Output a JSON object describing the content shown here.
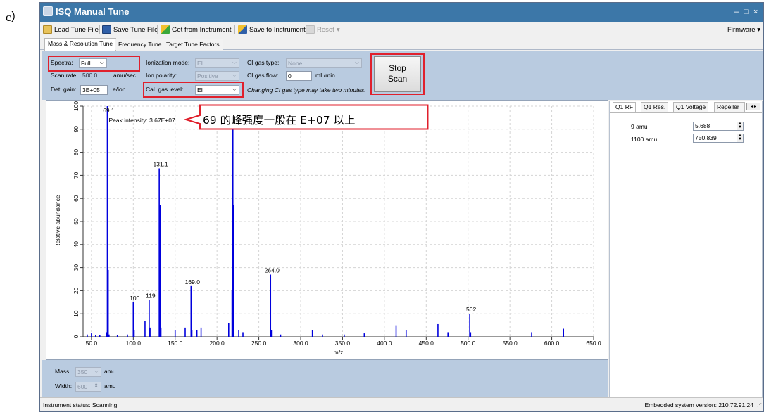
{
  "figure_label": "c）",
  "window": {
    "title": "ISQ Manual Tune",
    "controls": [
      "–",
      "□",
      "×"
    ]
  },
  "toolbar": {
    "load_tune_file": "Load Tune File",
    "save_tune_file": "Save Tune File",
    "get_from_instrument": "Get from Instrument",
    "save_to_instrument": "Save to Instrument",
    "reset": "Reset",
    "firmware": "Firmware ▾",
    "icons": [
      "folder-open-icon",
      "floppy-disk-icon",
      "get-from-instrument-icon",
      "save-to-instrument-icon",
      "reset-icon"
    ]
  },
  "tabs": [
    "Mass & Resolution Tune",
    "Frequency Tune",
    "Target Tune Factors"
  ],
  "controls": {
    "spectra_label": "Spectra:",
    "spectra_value": "Full",
    "scan_rate_label": "Scan rate:",
    "scan_rate_value": "500.0",
    "scan_rate_unit": "amu/sec",
    "det_gain_label": "Det. gain:",
    "det_gain_value": "3E+05",
    "det_gain_unit": "e/ion",
    "ionization_mode_label": "Ionization mode:",
    "ionization_mode_value": "EI",
    "ion_polarity_label": "Ion polarity:",
    "ion_polarity_value": "Positive",
    "cal_gas_level_label": "Cal. gas level:",
    "cal_gas_level_value": "EI",
    "ci_gas_type_label": "CI gas type:",
    "ci_gas_type_value": "None",
    "ci_gas_flow_label": "CI gas flow:",
    "ci_gas_flow_value": "0",
    "ci_gas_flow_unit": "mL/min",
    "ci_note": "Changing CI gas type may take two minutes.",
    "stop_scan_line1": "Stop",
    "stop_scan_line2": "Scan",
    "highlight_color": "#e0202c"
  },
  "annotation": {
    "text": "69 的峰强度一般在 E+07 以上"
  },
  "chart_data": {
    "type": "bar",
    "xlabel": "m/z",
    "ylabel": "Relative abundance",
    "xlim": [
      40,
      650
    ],
    "ylim": [
      0,
      100
    ],
    "x_ticks": [
      "50.0",
      "100.0",
      "150.0",
      "200.0",
      "250.0",
      "300.0",
      "350.0",
      "400.0",
      "450.0",
      "500.0",
      "550.0",
      "600.0",
      "650.0"
    ],
    "y_ticks": [
      "0",
      "10",
      "20",
      "30",
      "40",
      "50",
      "60",
      "70",
      "80",
      "90",
      "100"
    ],
    "peak_intensity_text": "Peak intensity: 3.67E+07",
    "color": "#0000dd",
    "labeled_peaks": [
      {
        "mz": 69,
        "value": 100,
        "label": "69.1"
      },
      {
        "mz": 100,
        "value": 15,
        "label": "100"
      },
      {
        "mz": 119,
        "value": 16,
        "label": "119"
      },
      {
        "mz": 131,
        "value": 73,
        "label": "131.1"
      },
      {
        "mz": 169,
        "value": 22,
        "label": "169.0"
      },
      {
        "mz": 219,
        "value": 95,
        "label": "219.0"
      },
      {
        "mz": 264,
        "value": 27,
        "label": "264.0"
      },
      {
        "mz": 502,
        "value": 10,
        "label": "502"
      }
    ],
    "peaks": [
      {
        "mz": 45,
        "value": 1
      },
      {
        "mz": 50,
        "value": 1.5
      },
      {
        "mz": 55,
        "value": 0.8
      },
      {
        "mz": 60,
        "value": 0.7
      },
      {
        "mz": 68,
        "value": 2
      },
      {
        "mz": 69,
        "value": 100
      },
      {
        "mz": 70,
        "value": 29
      },
      {
        "mz": 71,
        "value": 1
      },
      {
        "mz": 81,
        "value": 0.8
      },
      {
        "mz": 93,
        "value": 1
      },
      {
        "mz": 100,
        "value": 15
      },
      {
        "mz": 101,
        "value": 3
      },
      {
        "mz": 114,
        "value": 7
      },
      {
        "mz": 119,
        "value": 16
      },
      {
        "mz": 120,
        "value": 4
      },
      {
        "mz": 131,
        "value": 73
      },
      {
        "mz": 132,
        "value": 57
      },
      {
        "mz": 133,
        "value": 4
      },
      {
        "mz": 150,
        "value": 3
      },
      {
        "mz": 162,
        "value": 4
      },
      {
        "mz": 169,
        "value": 22
      },
      {
        "mz": 170,
        "value": 3
      },
      {
        "mz": 176,
        "value": 3
      },
      {
        "mz": 181,
        "value": 4
      },
      {
        "mz": 214,
        "value": 6
      },
      {
        "mz": 218,
        "value": 20
      },
      {
        "mz": 219,
        "value": 95
      },
      {
        "mz": 220,
        "value": 57
      },
      {
        "mz": 226,
        "value": 3
      },
      {
        "mz": 231,
        "value": 2
      },
      {
        "mz": 264,
        "value": 27
      },
      {
        "mz": 265,
        "value": 3
      },
      {
        "mz": 276,
        "value": 1
      },
      {
        "mz": 314,
        "value": 3
      },
      {
        "mz": 326,
        "value": 1
      },
      {
        "mz": 352,
        "value": 1
      },
      {
        "mz": 376,
        "value": 1.5
      },
      {
        "mz": 414,
        "value": 5
      },
      {
        "mz": 426,
        "value": 3
      },
      {
        "mz": 464,
        "value": 5.5
      },
      {
        "mz": 476,
        "value": 2
      },
      {
        "mz": 502,
        "value": 10
      },
      {
        "mz": 503,
        "value": 2
      },
      {
        "mz": 576,
        "value": 2
      },
      {
        "mz": 614,
        "value": 3.5
      }
    ]
  },
  "bottom": {
    "mass_label": "Mass:",
    "mass_value": "350",
    "mass_unit": "amu",
    "width_label": "Width:",
    "width_value": "600",
    "width_unit": "amu"
  },
  "right_panel": {
    "tabs": [
      "Q1 RF",
      "Q1 Res.",
      "Q1 Voltage",
      "Repeller"
    ],
    "rows": [
      {
        "label": "9 amu",
        "value": "5.688"
      },
      {
        "label": "1100 amu",
        "value": "750.839"
      }
    ]
  },
  "status": {
    "left": "Instrument status: Scanning",
    "right": "Embedded system version: 210.72.91.24"
  }
}
